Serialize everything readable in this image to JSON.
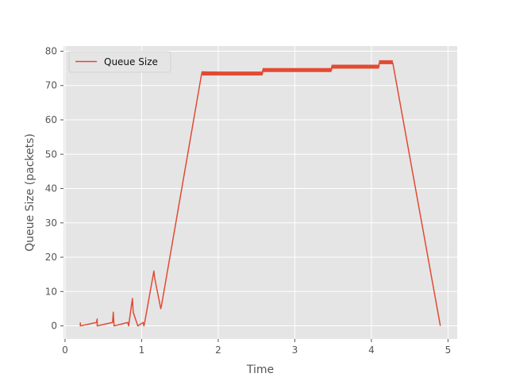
{
  "chart_data": {
    "type": "line",
    "title": "",
    "xlabel": "Time",
    "ylabel": "Queue Size (packets)",
    "xlim": [
      -0.02,
      5.12
    ],
    "ylim": [
      -3.8,
      81.5
    ],
    "xticks": [
      0,
      1,
      2,
      3,
      4,
      5
    ],
    "yticks": [
      0,
      10,
      20,
      30,
      40,
      50,
      60,
      70,
      80
    ],
    "grid": true,
    "legend_position": "top-left",
    "series": [
      {
        "name": "Queue Size",
        "color": "#E24A33",
        "x": [
          0.2,
          0.2,
          0.41,
          0.42,
          0.42,
          0.62,
          0.63,
          0.64,
          0.82,
          0.83,
          0.88,
          0.89,
          0.95,
          1.02,
          1.03,
          1.04,
          1.16,
          1.17,
          1.25,
          1.26,
          1.78,
          1.79,
          2.58,
          2.58,
          3.48,
          3.48,
          4.1,
          4.1,
          4.28,
          4.9
        ],
        "y": [
          1,
          0,
          1,
          2,
          0,
          1,
          4,
          0,
          1,
          0,
          8,
          4,
          0,
          1,
          0,
          1,
          16,
          14,
          5,
          6,
          73,
          74,
          73.5,
          74.5,
          74.5,
          75.5,
          75.5,
          76.5,
          76.5,
          0
        ]
      },
      {
        "name": "",
        "color": "#E24A33",
        "thick": true,
        "segments": [
          {
            "x": [
              1.79,
              2.58
            ],
            "y": [
              73.5,
              73.5
            ]
          },
          {
            "x": [
              2.58,
              3.48
            ],
            "y": [
              74.5,
              74.5
            ]
          },
          {
            "x": [
              3.48,
              4.1
            ],
            "y": [
              75.5,
              75.5
            ]
          },
          {
            "x": [
              4.1,
              4.28
            ],
            "y": [
              76.8,
              76.8
            ]
          }
        ]
      }
    ]
  }
}
